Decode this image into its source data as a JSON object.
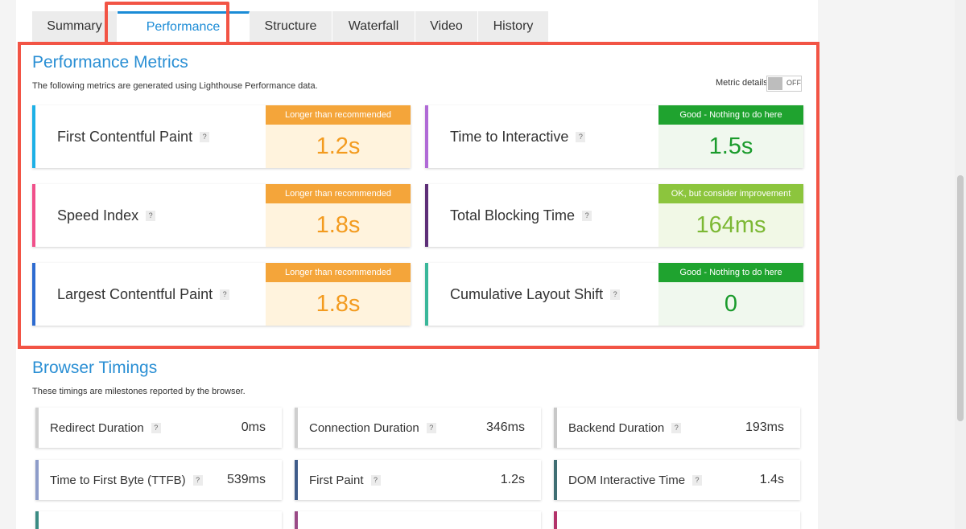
{
  "tabs": [
    {
      "label": "Summary"
    },
    {
      "label": "Performance"
    },
    {
      "label": "Structure"
    },
    {
      "label": "Waterfall"
    },
    {
      "label": "Video"
    },
    {
      "label": "History"
    }
  ],
  "performance": {
    "title": "Performance Metrics",
    "description": "The following metrics are generated using Lighthouse Performance data.",
    "toggle_label": "Metric details",
    "toggle_state": "OFF",
    "help_glyph": "?",
    "metrics": [
      {
        "name": "First Contentful Paint",
        "status": "Longer than recommended",
        "value": "1.2s",
        "accent": "#1db0e6"
      },
      {
        "name": "Time to Interactive",
        "status": "Good - Nothing to do here",
        "value": "1.5s",
        "accent": "#b06ad6"
      },
      {
        "name": "Speed Index",
        "status": "Longer than recommended",
        "value": "1.8s",
        "accent": "#f0508a"
      },
      {
        "name": "Total Blocking Time",
        "status": "OK, but consider improvement",
        "value": "164ms",
        "accent": "#5d2e77"
      },
      {
        "name": "Largest Contentful Paint",
        "status": "Longer than recommended",
        "value": "1.8s",
        "accent": "#2e6bd0"
      },
      {
        "name": "Cumulative Layout Shift",
        "status": "Good - Nothing to do here",
        "value": "0",
        "accent": "#3ab79a"
      }
    ],
    "colors": {
      "orange_header": "#f4a53a",
      "orange_bg": "#fff3dd",
      "orange_text": "#f39b1f",
      "green_header": "#1fa32f",
      "green_bg": "#f0f8ee",
      "green_text": "#1a9b2c",
      "light_green_header": "#8cc53d",
      "light_green_bg": "#f1f8e6",
      "light_green_text": "#7cb834"
    }
  },
  "browser_timings": {
    "title": "Browser Timings",
    "description": "These timings are milestones reported by the browser.",
    "items": [
      {
        "name": "Redirect Duration",
        "value": "0ms",
        "accent": "#cfcfcf"
      },
      {
        "name": "Connection Duration",
        "value": "346ms",
        "accent": "#cfcfcf"
      },
      {
        "name": "Backend Duration",
        "value": "193ms",
        "accent": "#c8c8c8"
      },
      {
        "name": "Time to First Byte (TTFB)",
        "value": "539ms",
        "accent": "#8d9cc9"
      },
      {
        "name": "First Paint",
        "value": "1.2s",
        "accent": "#3f5c8a"
      },
      {
        "name": "DOM Interactive Time",
        "value": "1.4s",
        "accent": "#3f6e73"
      },
      {
        "name": "",
        "value": "",
        "accent": "#3a8b83"
      },
      {
        "name": "",
        "value": "",
        "accent": "#9a4a86"
      },
      {
        "name": "",
        "value": "",
        "accent": "#b3336a"
      }
    ]
  }
}
